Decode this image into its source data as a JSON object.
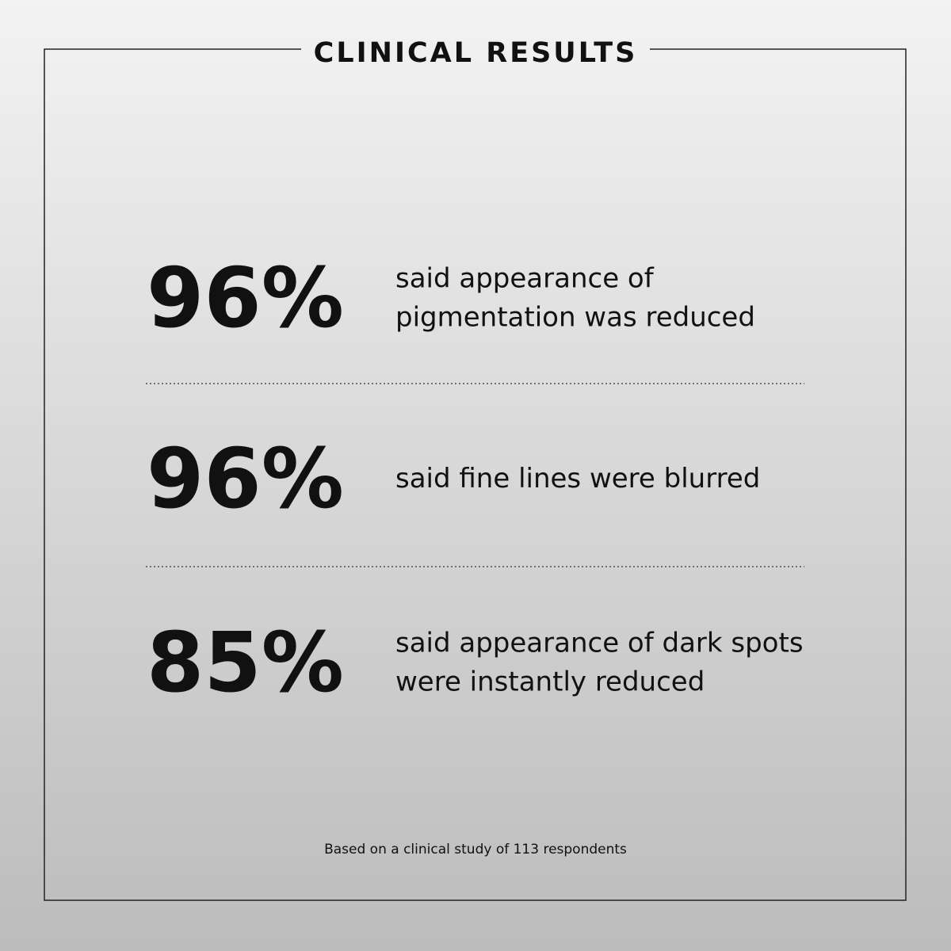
{
  "header": {
    "title": "CLINICAL RESULTS"
  },
  "stats": [
    {
      "figure": "96%",
      "lines": [
        "said appearance of",
        "pigmentation was reduced"
      ]
    },
    {
      "figure": "96%",
      "lines": [
        "said fine lines were blurred"
      ]
    },
    {
      "figure": "85%",
      "lines": [
        "said appearance of dark spots",
        "were instantly reduced"
      ]
    }
  ],
  "footnote": "Based on a clinical study of 113 respondents"
}
